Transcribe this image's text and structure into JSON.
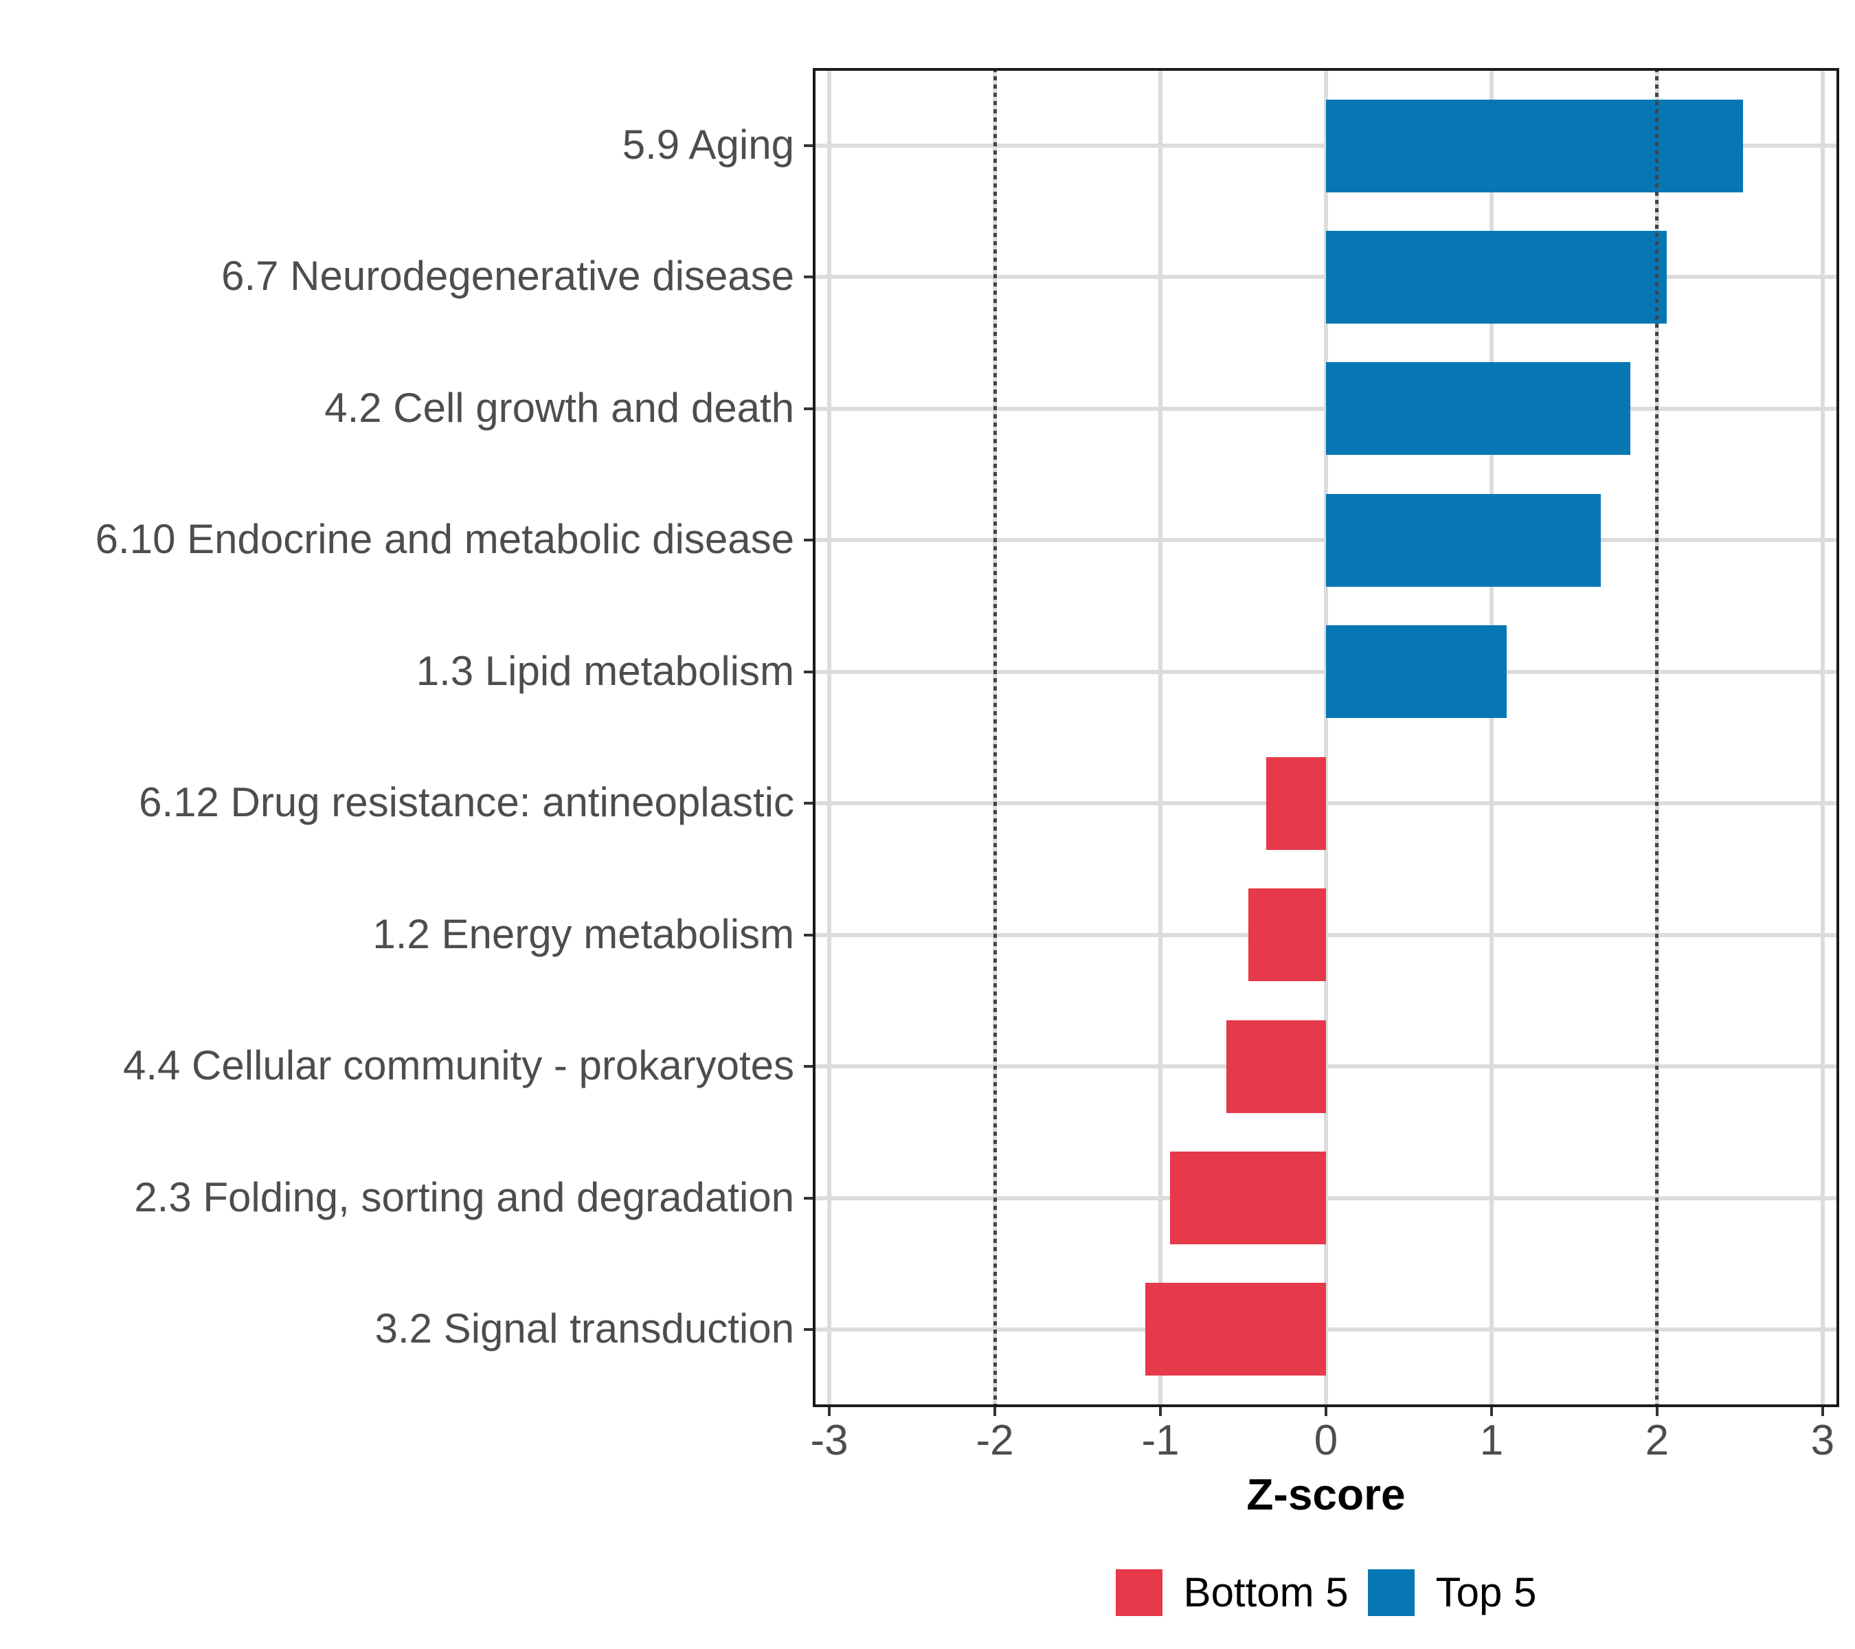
{
  "chart_data": {
    "type": "bar",
    "orientation": "horizontal",
    "title": "",
    "xlabel": "Z-score",
    "ylabel": "",
    "xlim": [
      -3.1,
      3.1
    ],
    "x_ticks": [
      -3,
      -2,
      -1,
      0,
      1,
      2,
      3
    ],
    "reference_lines": [
      -2,
      2
    ],
    "grid": true,
    "categories": [
      "5.9 Aging",
      "6.7 Neurodegenerative disease",
      "4.2 Cell growth and death",
      "6.10 Endocrine and metabolic disease",
      "1.3 Lipid metabolism",
      "6.12 Drug resistance: antineoplastic",
      "1.2 Energy metabolism",
      "4.4 Cellular community - prokaryotes",
      "2.3 Folding, sorting and degradation",
      "3.2 Signal transduction"
    ],
    "values": [
      2.52,
      2.06,
      1.84,
      1.66,
      1.09,
      -0.36,
      -0.47,
      -0.6,
      -0.94,
      -1.09
    ],
    "groups": [
      "Top 5",
      "Top 5",
      "Top 5",
      "Top 5",
      "Top 5",
      "Bottom 5",
      "Bottom 5",
      "Bottom 5",
      "Bottom 5",
      "Bottom 5"
    ],
    "colors": {
      "Top 5": "#0777b4",
      "Bottom 5": "#e6394a"
    },
    "legend": {
      "position": "bottom",
      "entries": [
        {
          "label": "Bottom 5",
          "color": "#e6394a"
        },
        {
          "label": "Top 5",
          "color": "#0777b4"
        }
      ]
    },
    "style_colors": {
      "grid": "#dcdcdc",
      "reference_line": "#454545",
      "axis_text": "#4d4d4d",
      "panel_border": "#1a1a1a",
      "tick": "#333333"
    }
  }
}
